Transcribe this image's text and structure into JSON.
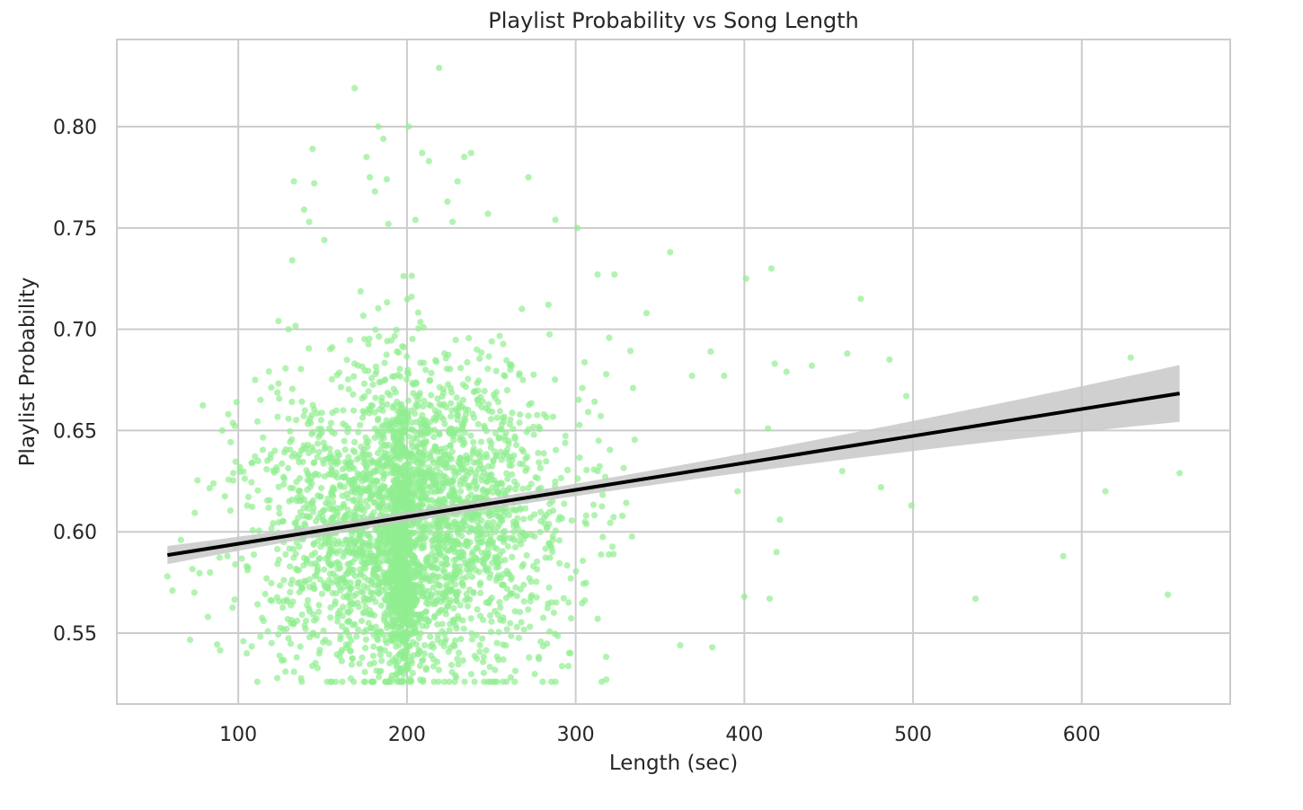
{
  "chart_data": {
    "type": "scatter",
    "title": "Playlist Probability vs Song Length",
    "xlabel": "Length (sec)",
    "ylabel": "Playlist Probability",
    "xlim": [
      28,
      688
    ],
    "ylim": [
      0.515,
      0.843
    ],
    "x_ticks": [
      100,
      200,
      300,
      400,
      500,
      600
    ],
    "y_ticks": [
      0.55,
      0.6,
      0.65,
      0.7,
      0.75,
      0.8
    ],
    "x_tick_labels": [
      "100",
      "200",
      "300",
      "400",
      "500",
      "600"
    ],
    "y_tick_labels": [
      "0.55",
      "0.60",
      "0.65",
      "0.70",
      "0.75",
      "0.80"
    ],
    "grid": true,
    "legend": "none",
    "colors": {
      "points": "#90ee90",
      "regression_line": "#000000",
      "confidence_band": "#c8c8c8",
      "grid": "#cccccc",
      "frame": "#cccccc"
    },
    "regression": {
      "x_range": [
        58,
        658
      ],
      "slope": 0.000133,
      "intercept": 0.5808,
      "ci_at_x_min": [
        0.584,
        0.593
      ],
      "ci_at_x_max": [
        0.653,
        0.681
      ]
    },
    "points_summary": {
      "count_estimate": 3500,
      "main_cluster_x_mean": 200,
      "main_cluster_y_mean": 0.605
    },
    "series": [
      {
        "type": "scatter",
        "points": [
          [
            58,
            0.578
          ],
          [
            61,
            0.571
          ],
          [
            66,
            0.596
          ],
          [
            74,
            0.57
          ],
          [
            82,
            0.558
          ],
          [
            86,
            0.592
          ],
          [
            97,
            0.629
          ],
          [
            99,
            0.664
          ],
          [
            101,
            0.632
          ],
          [
            103,
            0.546
          ],
          [
            105,
            0.54
          ],
          [
            110,
            0.675
          ],
          [
            128,
            0.531
          ],
          [
            132,
            0.734
          ],
          [
            133,
            0.773
          ],
          [
            139,
            0.759
          ],
          [
            142,
            0.753
          ],
          [
            144,
            0.789
          ],
          [
            145,
            0.772
          ],
          [
            151,
            0.744
          ],
          [
            169,
            0.819
          ],
          [
            176,
            0.785
          ],
          [
            178,
            0.775
          ],
          [
            181,
            0.768
          ],
          [
            183,
            0.8
          ],
          [
            186,
            0.794
          ],
          [
            188,
            0.774
          ],
          [
            189,
            0.752
          ],
          [
            201,
            0.8
          ],
          [
            205,
            0.754
          ],
          [
            209,
            0.787
          ],
          [
            213,
            0.783
          ],
          [
            219,
            0.829
          ],
          [
            224,
            0.763
          ],
          [
            227,
            0.753
          ],
          [
            230,
            0.773
          ],
          [
            234,
            0.785
          ],
          [
            238,
            0.787
          ],
          [
            248,
            0.757
          ],
          [
            272,
            0.775
          ],
          [
            288,
            0.754
          ],
          [
            301,
            0.75
          ],
          [
            313,
            0.727
          ],
          [
            323,
            0.727
          ],
          [
            334,
            0.671
          ],
          [
            342,
            0.708
          ],
          [
            356,
            0.738
          ],
          [
            362,
            0.544
          ],
          [
            369,
            0.677
          ],
          [
            380,
            0.689
          ],
          [
            381,
            0.543
          ],
          [
            388,
            0.677
          ],
          [
            396,
            0.62
          ],
          [
            400,
            0.568
          ],
          [
            401,
            0.725
          ],
          [
            414,
            0.651
          ],
          [
            415,
            0.567
          ],
          [
            416,
            0.73
          ],
          [
            418,
            0.683
          ],
          [
            419,
            0.59
          ],
          [
            421,
            0.606
          ],
          [
            425,
            0.679
          ],
          [
            440,
            0.682
          ],
          [
            458,
            0.63
          ],
          [
            461,
            0.688
          ],
          [
            469,
            0.715
          ],
          [
            481,
            0.622
          ],
          [
            486,
            0.685
          ],
          [
            496,
            0.667
          ],
          [
            499,
            0.613
          ],
          [
            537,
            0.567
          ],
          [
            589,
            0.588
          ],
          [
            614,
            0.62
          ],
          [
            629,
            0.686
          ],
          [
            651,
            0.569
          ],
          [
            658,
            0.629
          ]
        ]
      }
    ]
  }
}
